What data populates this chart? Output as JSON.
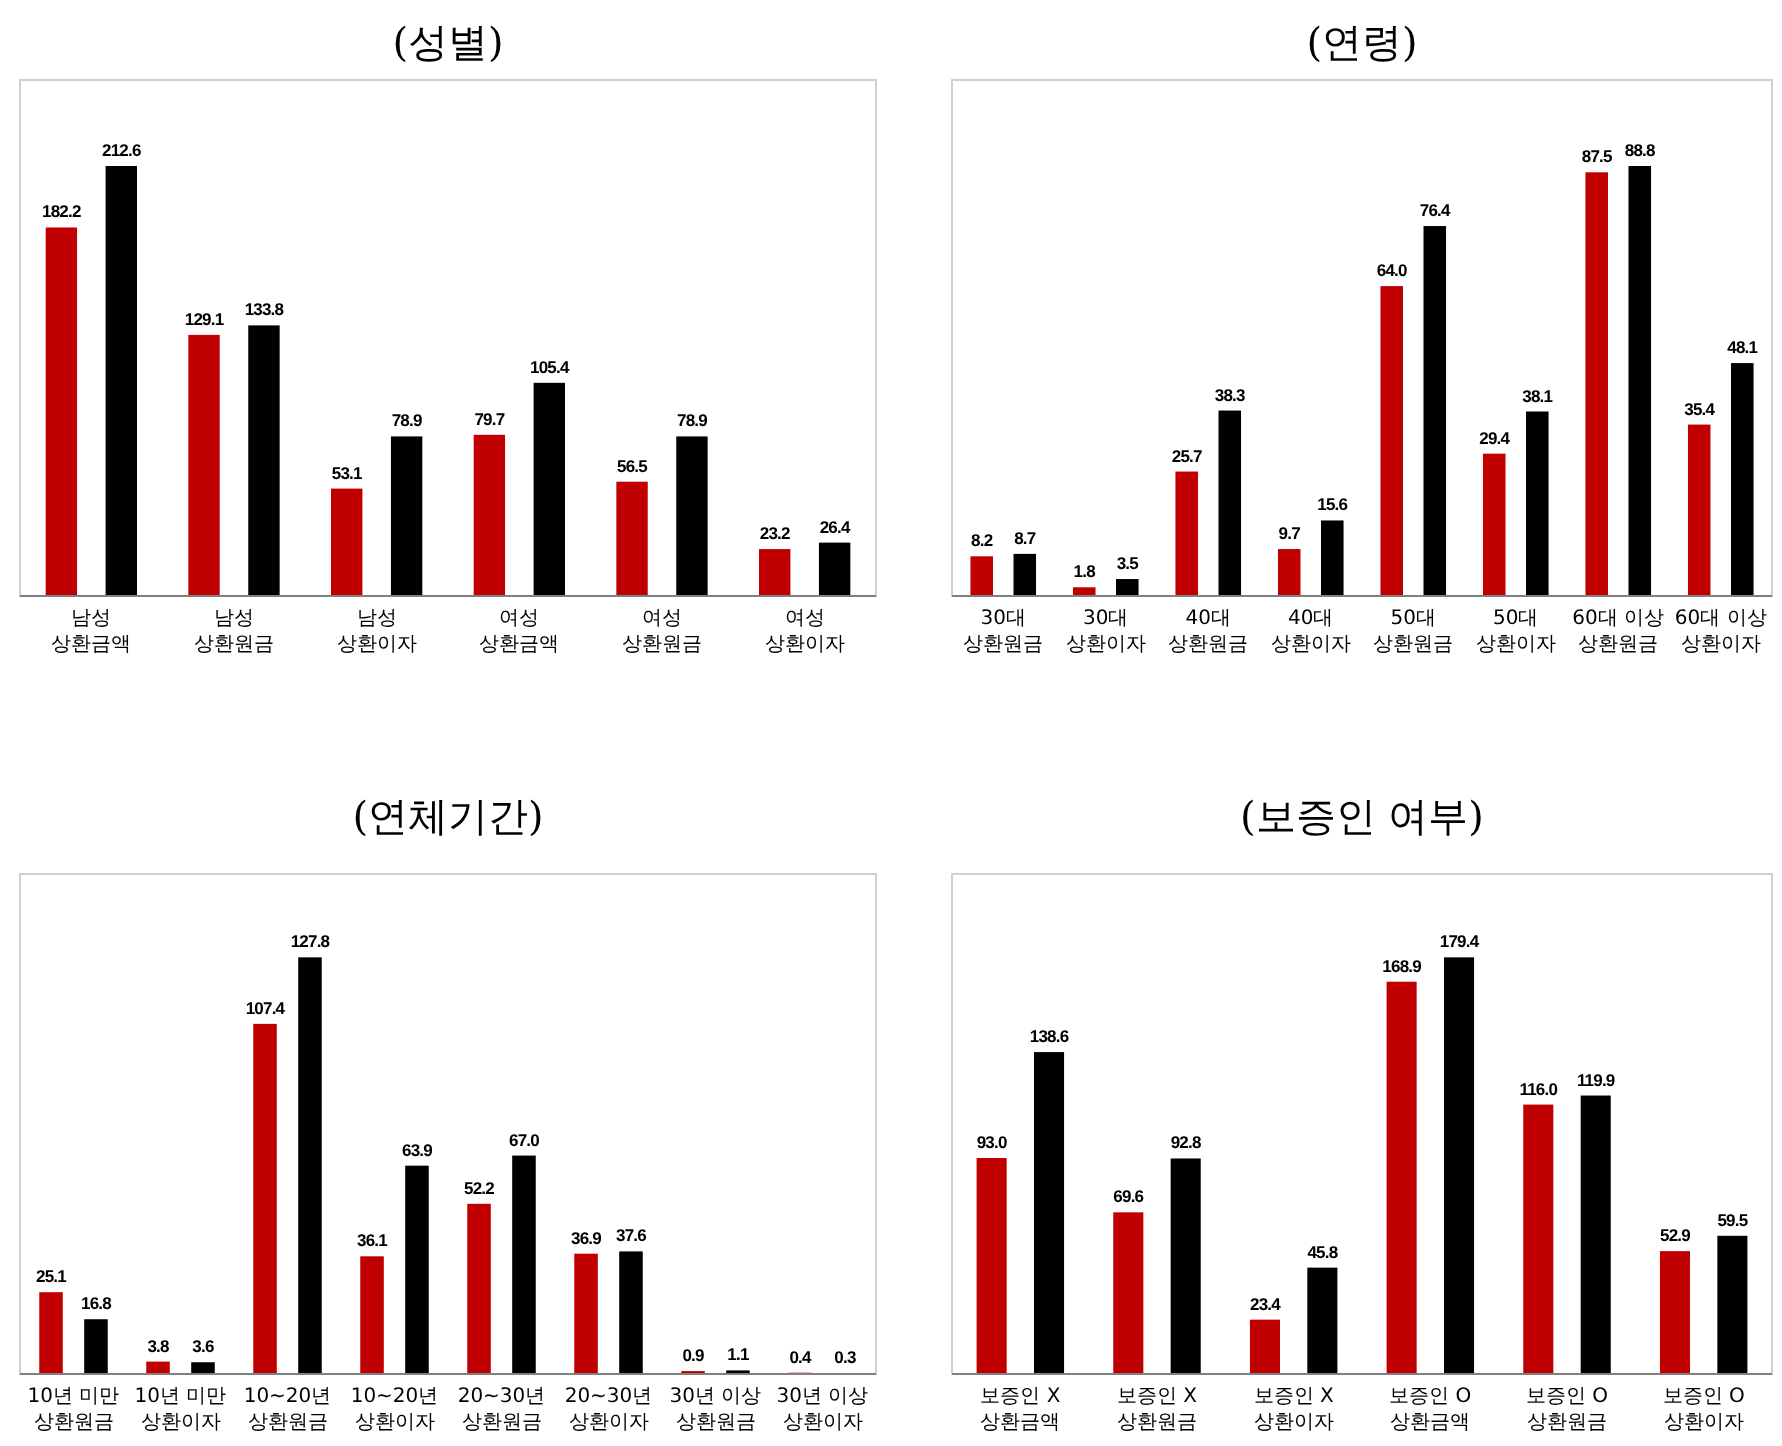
{
  "chart_data": [
    {
      "type": "bar",
      "title": "(성별)",
      "categories": [
        "남성\n상환금액",
        "남성\n상환원금",
        "남성\n상환이자",
        "여성\n상환금액",
        "여성\n상환원금",
        "여성\n상환이자"
      ],
      "series": [
        {
          "color": "#c00000",
          "values": [
            182.2,
            129.1,
            53.1,
            79.7,
            56.5,
            23.2
          ],
          "value_labels": [
            "182.2",
            "129.1",
            "53.1",
            "79.7",
            "56.5",
            "23.2"
          ]
        },
        {
          "color": "#000000",
          "values": [
            212.6,
            133.8,
            78.9,
            105.4,
            78.9,
            26.4
          ],
          "value_labels": [
            "212.6",
            "133.8",
            "78.9",
            "105.4",
            "78.9",
            "26.4"
          ]
        }
      ]
    },
    {
      "type": "bar",
      "title": "(연령)",
      "categories": [
        "30대\n상환원금",
        "30대\n상환이자",
        "40대\n상환원금",
        "40대\n상환이자",
        "50대\n상환원금",
        "50대\n상환이자",
        "60대 이상\n상환원금",
        "60대 이상\n상환이자"
      ],
      "series": [
        {
          "color": "#c00000",
          "values": [
            8.2,
            1.8,
            25.7,
            9.7,
            64.0,
            29.4,
            87.5,
            35.4
          ],
          "value_labels": [
            "8.2",
            "1.8",
            "25.7",
            "9.7",
            "64.0",
            "29.4",
            "87.5",
            "35.4"
          ]
        },
        {
          "color": "#000000",
          "values": [
            8.7,
            3.5,
            38.3,
            15.6,
            76.4,
            38.1,
            88.8,
            48.1
          ],
          "value_labels": [
            "8.7",
            "3.5",
            "38.3",
            "15.6",
            "76.4",
            "38.1",
            "88.8",
            "48.1"
          ]
        }
      ]
    },
    {
      "type": "bar",
      "title": "(연체기간)",
      "categories": [
        "10년 미만\n상환원금",
        "10년 미만\n상환이자",
        "10~20년\n상환원금",
        "10~20년\n상환이자",
        "20~30년\n상환원금",
        "20~30년\n상환이자",
        "30년 이상\n상환원금",
        "30년 이상\n상환이자"
      ],
      "series": [
        {
          "color": "#c00000",
          "values": [
            25.1,
            3.8,
            107.4,
            36.1,
            52.2,
            36.9,
            0.9,
            0.4
          ],
          "value_labels": [
            "25.1",
            "3.8",
            "107.4",
            "36.1",
            "52.2",
            "36.9",
            "0.9",
            "0.4"
          ]
        },
        {
          "color": "#000000",
          "values": [
            16.8,
            3.6,
            127.8,
            63.9,
            67.0,
            37.6,
            1.1,
            0.3
          ],
          "value_labels": [
            "16.8",
            "3.6",
            "127.8",
            "63.9",
            "67.0",
            "37.6",
            "1.1",
            "0.3"
          ]
        }
      ]
    },
    {
      "type": "bar",
      "title": "(보증인 여부)",
      "categories": [
        "보증인 X\n상환금액",
        "보증인 X\n상환원금",
        "보증인 X\n상환이자",
        "보증인 O\n상환금액",
        "보증인 O\n상환원금",
        "보증인 O\n상환이자"
      ],
      "series": [
        {
          "color": "#c00000",
          "values": [
            93.0,
            69.6,
            23.4,
            168.9,
            116.0,
            52.9
          ],
          "value_labels": [
            "93.0",
            "69.6",
            "23.4",
            "168.9",
            "116.0",
            "52.9"
          ]
        },
        {
          "color": "#000000",
          "values": [
            138.6,
            92.8,
            45.8,
            179.4,
            119.9,
            59.5
          ],
          "value_labels": [
            "138.6",
            "92.8",
            "45.8",
            "179.4",
            "119.9",
            "59.5"
          ]
        }
      ]
    }
  ]
}
